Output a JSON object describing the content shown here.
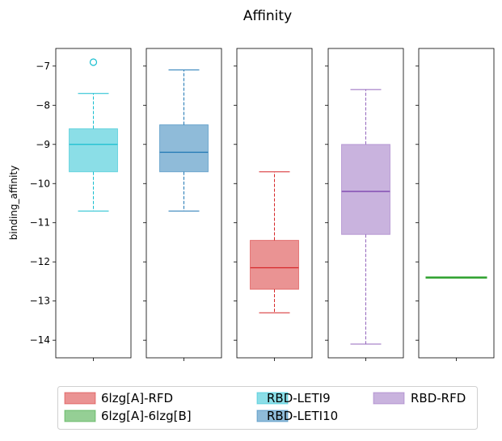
{
  "chart_data": {
    "type": "box",
    "title": "Affinity",
    "ylabel": "binding_affinity",
    "ylim": [
      -14.45,
      -6.55
    ],
    "yticks": [
      -7,
      -8,
      -9,
      -10,
      -11,
      -12,
      -13,
      -14
    ],
    "ytick_labels": [
      "−7",
      "−8",
      "−9",
      "−10",
      "−11",
      "−12",
      "−13",
      "−14"
    ],
    "grid": false,
    "legend_position": "bottom",
    "legend": [
      {
        "label": "6lzg[A]-RFD",
        "color": "#d62728"
      },
      {
        "label": "6lzg[A]-6lzg[B]",
        "color": "#2ca02c"
      },
      {
        "label": "RBD-LETI9",
        "color": "#17becf"
      },
      {
        "label": "RBD-LETI10",
        "color": "#1f77b4"
      },
      {
        "label": "RBD-RFD",
        "color": "#9467bd"
      }
    ],
    "boxes": [
      {
        "series": "RBD-LETI9",
        "color": "#17becf",
        "whisker_low": -10.7,
        "q1": -9.7,
        "median": -9.0,
        "q3": -8.6,
        "whisker_high": -7.7,
        "outliers": [
          -6.9
        ]
      },
      {
        "series": "RBD-LETI10",
        "color": "#1f77b4",
        "whisker_low": -10.7,
        "q1": -9.7,
        "median": -9.2,
        "q3": -8.5,
        "whisker_high": -7.1,
        "outliers": []
      },
      {
        "series": "6lzg[A]-RFD",
        "color": "#d62728",
        "whisker_low": -13.3,
        "q1": -12.7,
        "median": -12.15,
        "q3": -11.45,
        "whisker_high": -9.7,
        "outliers": []
      },
      {
        "series": "RBD-RFD",
        "color": "#9467bd",
        "whisker_low": -14.1,
        "q1": -11.3,
        "median": -10.2,
        "q3": -9.0,
        "whisker_high": -7.6,
        "outliers": []
      },
      {
        "series": "6lzg[A]-6lzg[B]",
        "color": "#2ca02c",
        "whisker_low": -12.4,
        "q1": -12.4,
        "median": -12.4,
        "q3": -12.4,
        "whisker_high": -12.4,
        "outliers": []
      }
    ]
  }
}
